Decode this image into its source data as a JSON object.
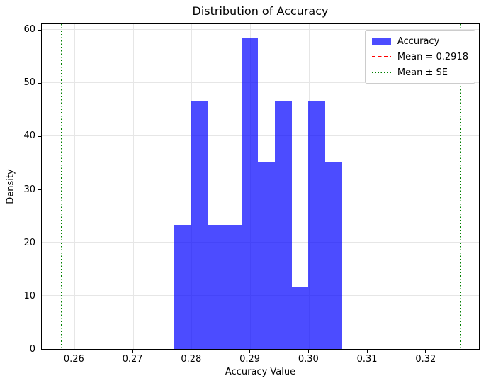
{
  "chart_data": {
    "type": "bar",
    "subtype": "histogram",
    "title": "Distribution of Accuracy",
    "xlabel": "Accuracy Value",
    "ylabel": "Density",
    "xlim": [
      0.2544,
      0.3292
    ],
    "ylim": [
      0,
      61.2
    ],
    "x_ticks": [
      0.26,
      0.27,
      0.28,
      0.29,
      0.3,
      0.31,
      0.32
    ],
    "x_tick_labels": [
      "0.26",
      "0.27",
      "0.28",
      "0.29",
      "0.30",
      "0.31",
      "0.32"
    ],
    "y_ticks": [
      0,
      10,
      20,
      30,
      40,
      50,
      60
    ],
    "y_tick_labels": [
      "0",
      "10",
      "20",
      "30",
      "40",
      "50",
      "60"
    ],
    "bin_edges": [
      0.277,
      0.27986,
      0.28272,
      0.28558,
      0.28844,
      0.2913,
      0.29416,
      0.29702,
      0.29988,
      0.30274,
      0.3056
    ],
    "densities": [
      23.31,
      46.62,
      23.31,
      23.31,
      58.28,
      34.97,
      46.62,
      11.66,
      46.62,
      34.97
    ],
    "counts": [
      2,
      4,
      2,
      2,
      5,
      3,
      4,
      1,
      4,
      3
    ],
    "mean": 0.2918,
    "se": 0.034,
    "mean_minus_se": 0.2578,
    "mean_plus_se": 0.3258,
    "grid": true,
    "legend": {
      "position": "upper right",
      "entries": [
        {
          "label": "Accuracy",
          "type": "patch"
        },
        {
          "label": "Mean = 0.2918",
          "type": "dashed-line"
        },
        {
          "label": "Mean ± SE",
          "type": "dotted-line"
        }
      ]
    },
    "colors": {
      "bar": "rgba(0,0,255,0.7)",
      "mean_line": "#ff0000",
      "se_line": "#008000",
      "grid": "#e6e6e6",
      "spine": "#000000"
    }
  }
}
